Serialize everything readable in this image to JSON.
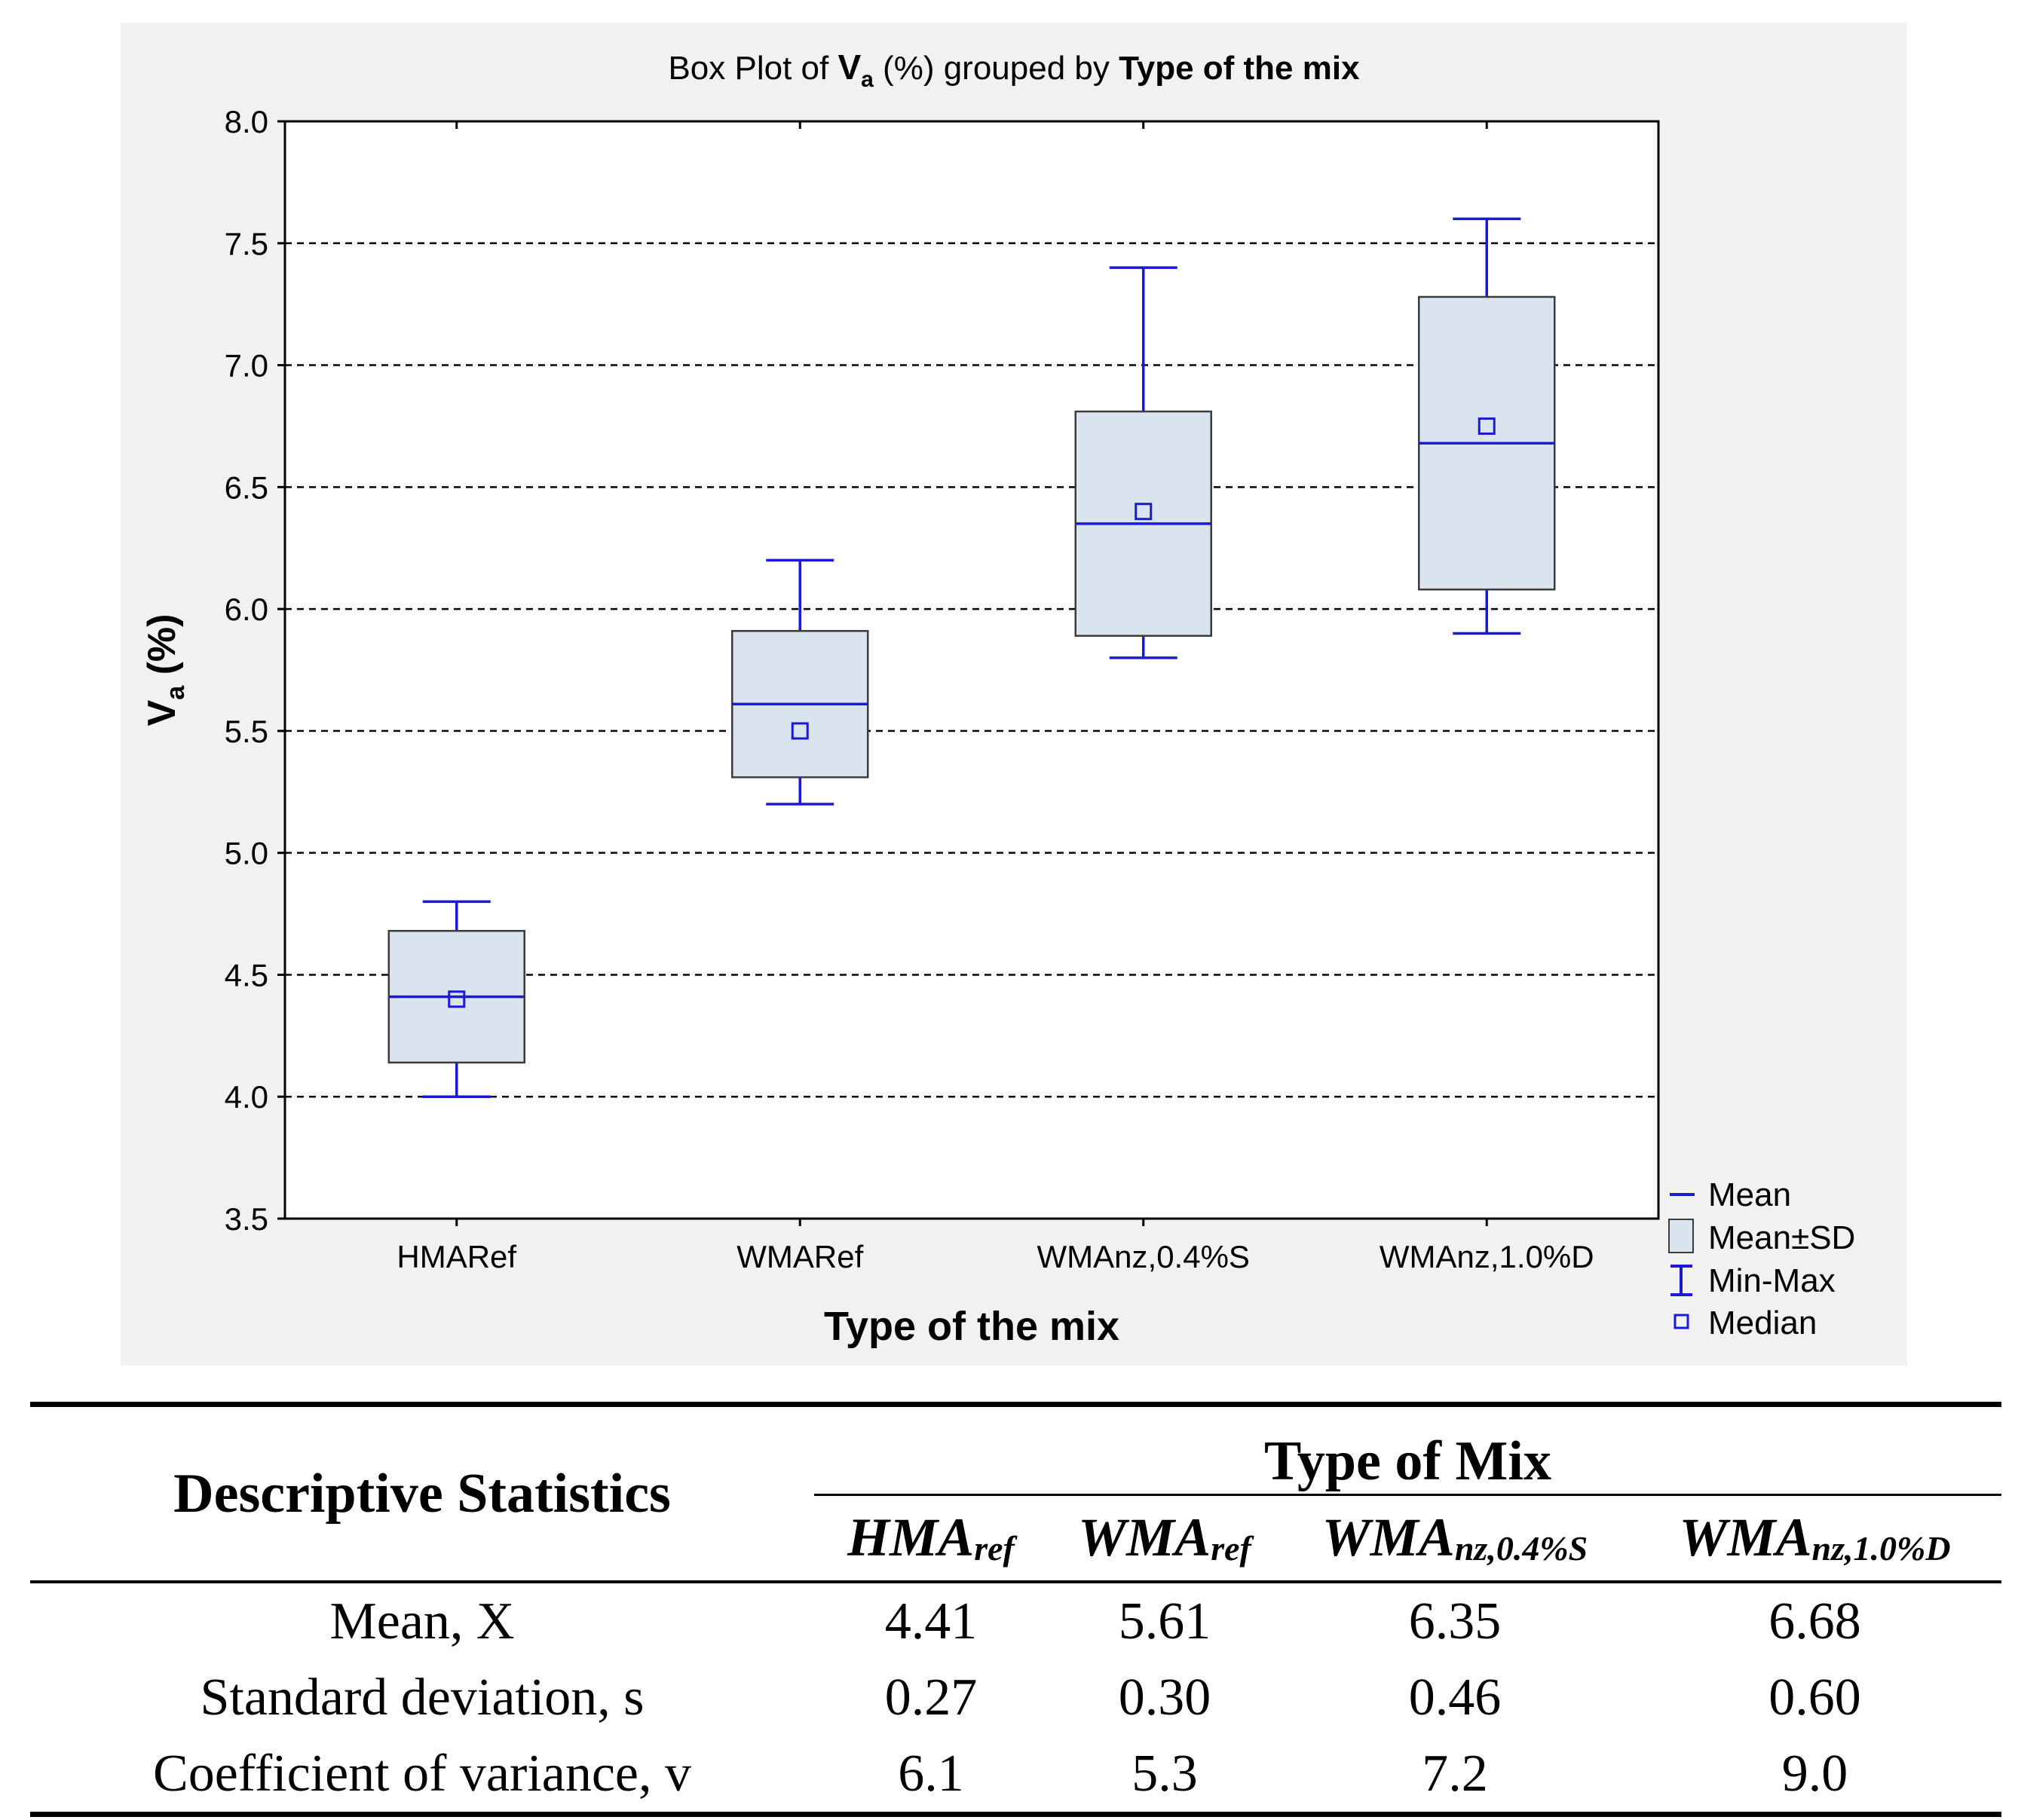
{
  "chart_data": {
    "type": "box",
    "title": {
      "prefix": "Box Plot of ",
      "var_main": "V",
      "var_sub": "a",
      "middle": " (%) grouped by ",
      "group": "Type of the mix"
    },
    "ylabel": {
      "main": "V",
      "sub": "a",
      "rest": " (%)"
    },
    "xlabel": "Type of the mix",
    "ylim": [
      3.5,
      8.0
    ],
    "yticks": [
      "3.5",
      "4.0",
      "4.5",
      "5.0",
      "5.5",
      "6.0",
      "6.5",
      "7.0",
      "7.5",
      "8.0"
    ],
    "grid_values": [
      4.0,
      4.5,
      5.0,
      5.5,
      6.0,
      6.5,
      7.0,
      7.5
    ],
    "categories": [
      "HMARef",
      "WMARef",
      "WMAnz,0.4%S",
      "WMAnz,1.0%D"
    ],
    "mean": [
      4.41,
      5.61,
      6.35,
      6.68
    ],
    "sd_low": [
      4.14,
      5.31,
      5.89,
      6.08
    ],
    "sd_high": [
      4.68,
      5.91,
      6.81,
      7.28
    ],
    "min": [
      4.0,
      5.2,
      5.8,
      5.9
    ],
    "max": [
      4.8,
      6.2,
      7.4,
      7.6
    ],
    "median": [
      4.4,
      5.5,
      6.4,
      6.75
    ],
    "legend": [
      "Mean",
      "Mean±SD",
      "Min-Max",
      "Median"
    ],
    "legend_position": "bottom-right",
    "colors": {
      "line": "#1a1ad6",
      "box_fill": "#d9e4ee",
      "box_stroke": "#3c3c3c",
      "panel": "#f1f1f1"
    }
  },
  "table": {
    "stub_header": "Descriptive Statistics",
    "group_header": "Type of Mix",
    "columns": [
      {
        "main": "HMA",
        "sub": "ref"
      },
      {
        "main": "WMA",
        "sub": "ref"
      },
      {
        "main": "WMA",
        "sub": "nz,0.4%S"
      },
      {
        "main": "WMA",
        "sub": "nz,1.0%D"
      }
    ],
    "rows": [
      {
        "label": "Mean, X",
        "values": [
          "4.41",
          "5.61",
          "6.35",
          "6.68"
        ]
      },
      {
        "label": "Standard deviation, s",
        "values": [
          "0.27",
          "0.30",
          "0.46",
          "0.60"
        ]
      },
      {
        "label": "Coefficient of variance, v",
        "values": [
          "6.1",
          "5.3",
          "7.2",
          "9.0"
        ]
      }
    ]
  }
}
